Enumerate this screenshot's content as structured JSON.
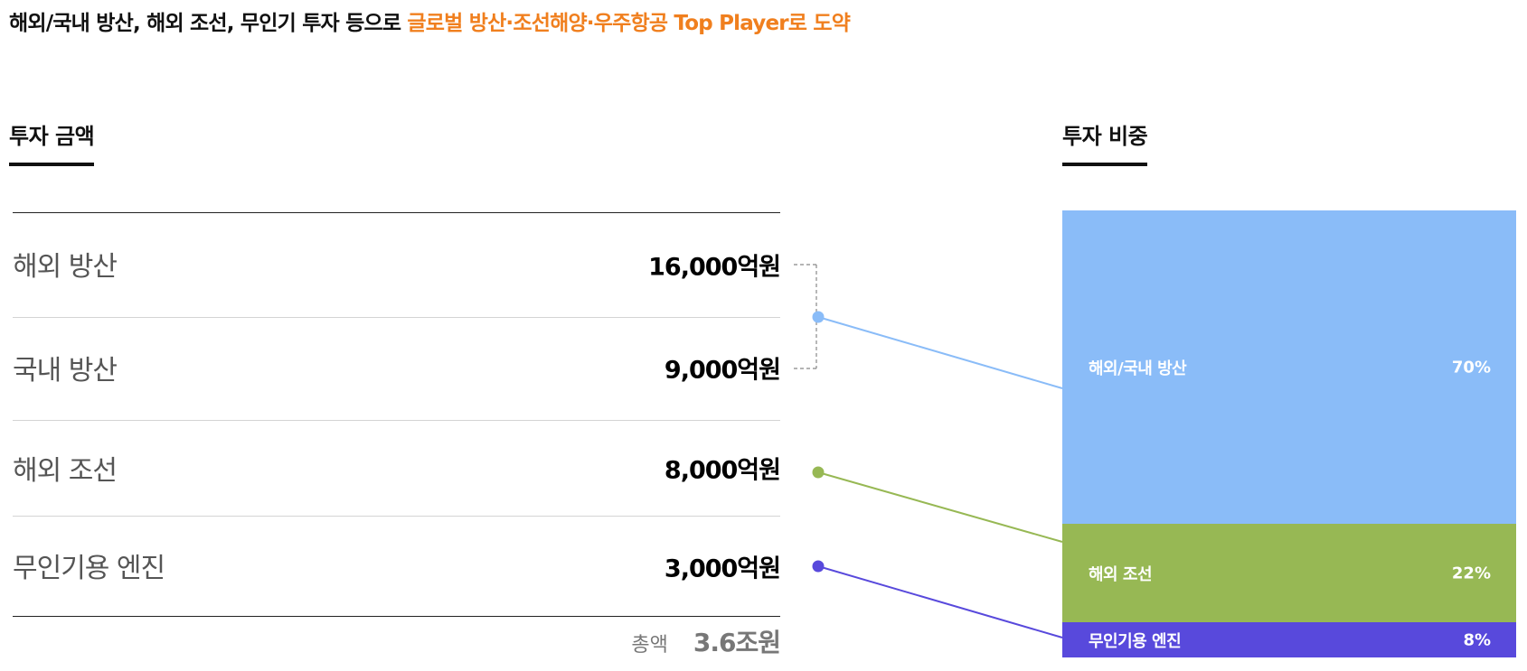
{
  "headline": {
    "prefix": "해외/국내 방산, 해외 조선, 무인기 투자 등으로 ",
    "highlight": "글로벌 방산·조선해양·우주항공 Top Player로 도약"
  },
  "colors": {
    "accent": "#f07f1e",
    "defense": "#8abcf8",
    "shipbuilding": "#97b854",
    "engine": "#5849dc"
  },
  "amount_section": {
    "title": "투자 금액",
    "rows": [
      {
        "label": "해외 방산",
        "value": "16,000억원"
      },
      {
        "label": "국내 방산",
        "value": "9,000억원"
      },
      {
        "label": "해외 조선",
        "value": "8,000억원"
      },
      {
        "label": "무인기용 엔진",
        "value": "3,000억원"
      }
    ],
    "total_label": "총액",
    "total_value": "3.6조원"
  },
  "share_section": {
    "title": "투자 비중"
  },
  "chart_data": {
    "type": "bar",
    "stacked": true,
    "categories": [
      "해외/국내 방산",
      "해외 조선",
      "무인기용 엔진"
    ],
    "values": [
      70,
      22,
      8
    ],
    "value_labels": [
      "70%",
      "22%",
      "8%"
    ],
    "colors": [
      "#8abcf8",
      "#97b854",
      "#5849dc"
    ],
    "amounts_eok_won": {
      "해외 방산": 16000,
      "국내 방산": 9000,
      "해외 조선": 8000,
      "무인기용 엔진": 3000
    },
    "total": "3.6조원"
  }
}
